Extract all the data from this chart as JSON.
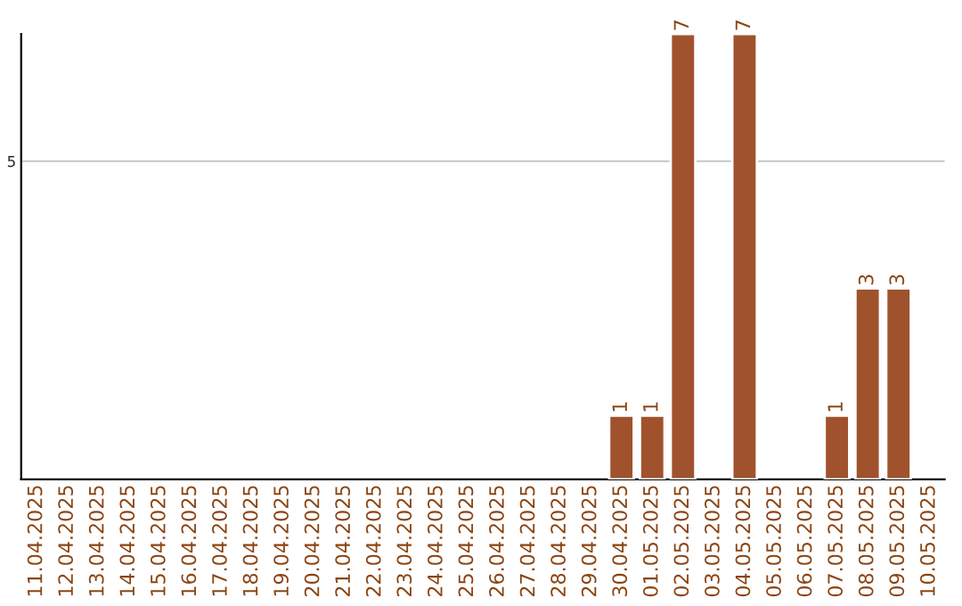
{
  "chart_data": {
    "type": "bar",
    "categories": [
      "11.04.2025",
      "12.04.2025",
      "13.04.2025",
      "14.04.2025",
      "15.04.2025",
      "16.04.2025",
      "17.04.2025",
      "18.04.2025",
      "19.04.2025",
      "20.04.2025",
      "21.04.2025",
      "22.04.2025",
      "23.04.2025",
      "24.04.2025",
      "25.04.2025",
      "26.04.2025",
      "27.04.2025",
      "28.04.2025",
      "29.04.2025",
      "30.04.2025",
      "01.05.2025",
      "02.05.2025",
      "03.05.2025",
      "04.05.2025",
      "05.05.2025",
      "06.05.2025",
      "07.05.2025",
      "08.05.2025",
      "09.05.2025",
      "10.05.2025"
    ],
    "values": [
      null,
      null,
      null,
      null,
      null,
      null,
      null,
      null,
      null,
      null,
      null,
      null,
      null,
      null,
      null,
      null,
      null,
      null,
      null,
      1,
      1,
      7,
      null,
      7,
      null,
      null,
      1,
      3,
      3,
      null
    ],
    "data_labels": true,
    "color": "#a0522d",
    "ylim": [
      0,
      7
    ],
    "yticks": [
      5
    ],
    "grid": "y"
  }
}
